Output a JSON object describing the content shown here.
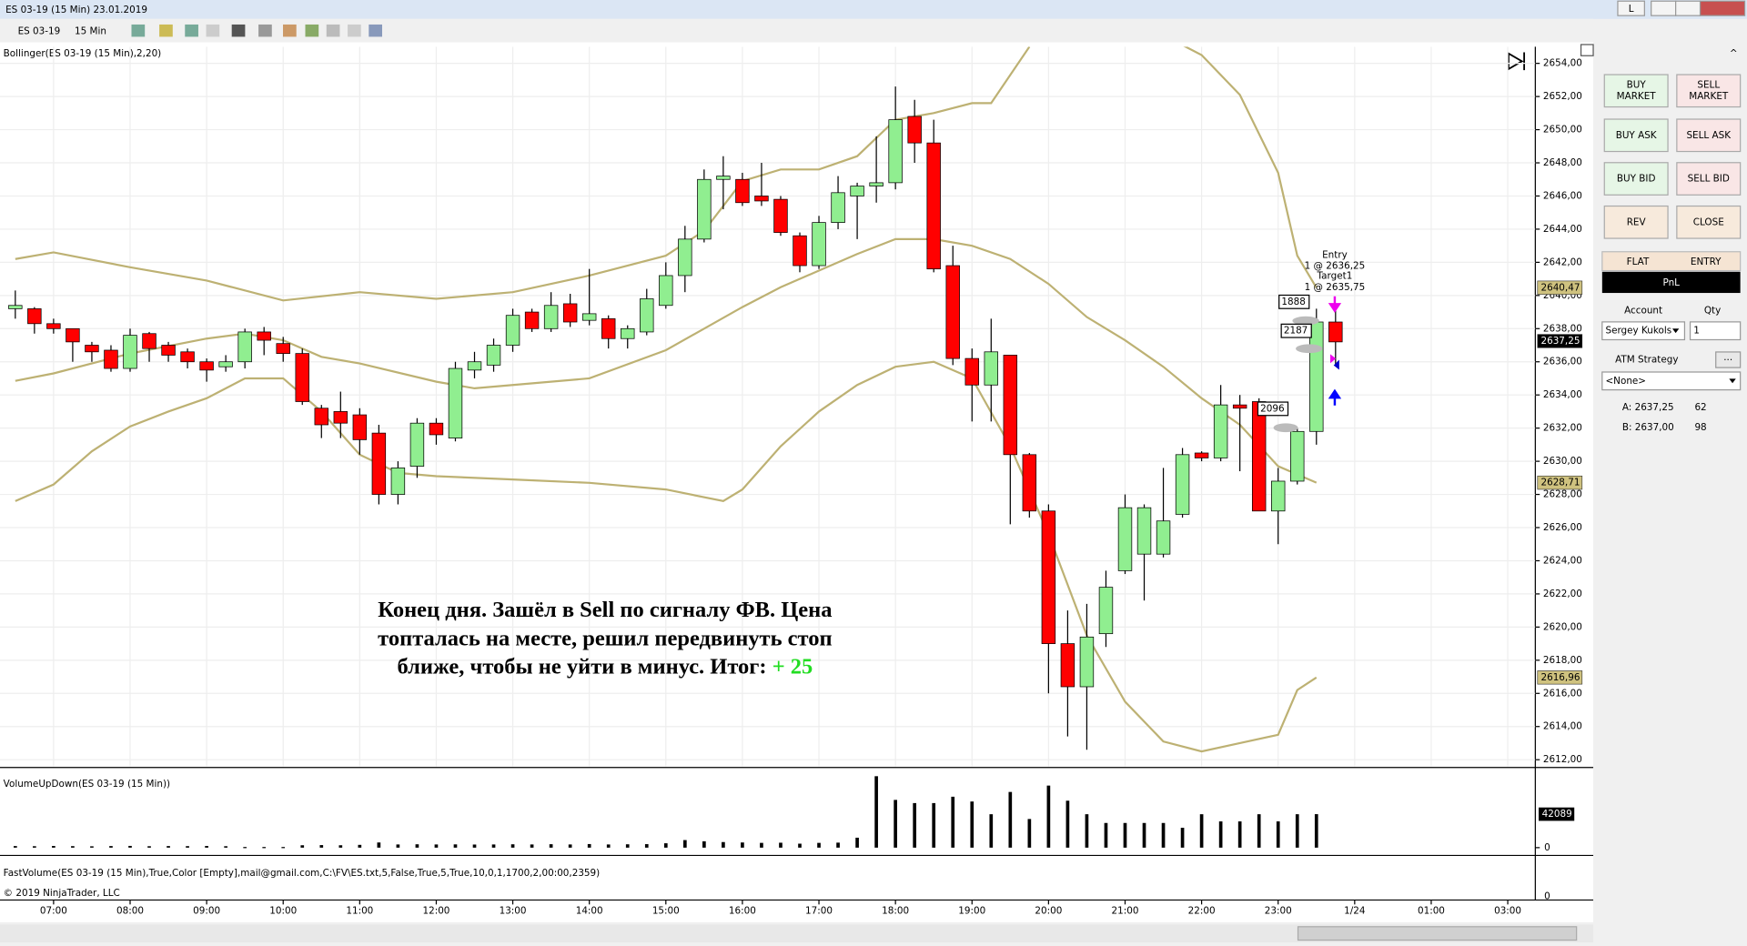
{
  "window": {
    "title": "ES 03-19 (15 Min)  23.01.2019",
    "button": "L"
  },
  "toolbar": {
    "instrument": "ES 03-19",
    "interval": "15 Min"
  },
  "chart_data": [
    {
      "type": "candlestick",
      "title": "Bollinger(ES 03-19 (15 Min),2,20)",
      "x": [
        6.5,
        6.75,
        7,
        7.25,
        7.5,
        7.75,
        8,
        8.25,
        8.5,
        8.75,
        9,
        9.25,
        9.5,
        9.75,
        10,
        10.25,
        10.5,
        10.75,
        11,
        11.25,
        11.5,
        11.75,
        12,
        12.25,
        12.5,
        12.75,
        13,
        13.25,
        13.5,
        13.75,
        14,
        14.25,
        14.5,
        14.75,
        15,
        15.25,
        15.5,
        15.75,
        16,
        16.25,
        16.5,
        16.75,
        17,
        17.25,
        17.5,
        17.75,
        18,
        18.25,
        18.5,
        18.75,
        19,
        19.25,
        19.5,
        19.75,
        20,
        20.25,
        20.5,
        20.75,
        21,
        21.25,
        21.5,
        21.75,
        22,
        22.25,
        22.5,
        22.75,
        23,
        23.25,
        23.5,
        23.75
      ],
      "open": [
        2639.2,
        2639.2,
        2638.3,
        2638.0,
        2637.0,
        2636.7,
        2635.6,
        2637.7,
        2637.0,
        2636.6,
        2636.0,
        2635.7,
        2636.0,
        2637.8,
        2637.1,
        2636.5,
        2633.2,
        2633.0,
        2632.8,
        2631.7,
        2628.0,
        2629.7,
        2632.3,
        2631.4,
        2635.5,
        2635.8,
        2637.0,
        2639.0,
        2638.0,
        2639.5,
        2638.5,
        2638.6,
        2637.4,
        2637.8,
        2639.4,
        2641.2,
        2643.4,
        2647.0,
        2647.0,
        2646.0,
        2645.8,
        2643.6,
        2641.8,
        2644.4,
        2646.0,
        2646.6,
        2646.8,
        2650.8,
        2649.2,
        2641.8,
        2636.2,
        2634.6,
        2636.4,
        2630.4,
        2627.0,
        2619.0,
        2616.4,
        2619.6,
        2623.4,
        2624.4,
        2624.4,
        2626.8,
        2630.5,
        2630.2,
        2633.4,
        2633.6,
        2627.0,
        2628.8,
        2631.8,
        2638.4
      ],
      "high": [
        2640.3,
        2639.3,
        2638.6,
        2638.0,
        2637.2,
        2637.0,
        2638.0,
        2637.8,
        2637.2,
        2636.8,
        2636.2,
        2636.4,
        2638.0,
        2638.1,
        2637.5,
        2636.8,
        2633.4,
        2634.2,
        2633.2,
        2632.2,
        2630.0,
        2632.6,
        2632.6,
        2636.0,
        2636.6,
        2637.4,
        2639.2,
        2639.2,
        2640.2,
        2640.1,
        2641.6,
        2638.8,
        2638.2,
        2640.4,
        2642.0,
        2644.2,
        2647.6,
        2648.4,
        2647.4,
        2648.0,
        2646.0,
        2643.8,
        2644.8,
        2647.2,
        2646.8,
        2649.6,
        2652.6,
        2651.8,
        2650.6,
        2643.0,
        2636.8,
        2638.6,
        2636.4,
        2630.5,
        2627.4,
        2621.0,
        2621.4,
        2623.4,
        2628.0,
        2627.4,
        2629.6,
        2630.8,
        2630.6,
        2634.6,
        2634.0,
        2633.8,
        2629.6,
        2632.0,
        2639.2,
        2639.2
      ],
      "low": [
        2638.6,
        2637.7,
        2637.7,
        2636.0,
        2636.0,
        2635.4,
        2635.4,
        2636.0,
        2636.0,
        2635.6,
        2634.8,
        2635.4,
        2635.6,
        2636.4,
        2636.0,
        2633.4,
        2631.4,
        2631.4,
        2630.4,
        2627.4,
        2627.4,
        2629.0,
        2631.0,
        2631.2,
        2635.0,
        2635.4,
        2636.6,
        2637.8,
        2637.8,
        2638.1,
        2638.2,
        2636.8,
        2636.8,
        2637.6,
        2639.2,
        2640.2,
        2643.2,
        2645.2,
        2645.4,
        2645.4,
        2643.6,
        2641.4,
        2641.6,
        2644.0,
        2643.4,
        2645.6,
        2646.4,
        2648.0,
        2641.4,
        2635.8,
        2632.4,
        2632.4,
        2626.2,
        2626.6,
        2616.0,
        2613.4,
        2612.6,
        2618.8,
        2623.2,
        2621.6,
        2624.2,
        2626.6,
        2630.0,
        2630.0,
        2629.4,
        2627.0,
        2625.0,
        2628.6,
        2631.0,
        2635.8
      ],
      "close": [
        2639.4,
        2638.3,
        2638.0,
        2637.2,
        2636.6,
        2635.6,
        2637.6,
        2636.8,
        2636.4,
        2636.0,
        2635.5,
        2636.0,
        2637.8,
        2637.3,
        2636.5,
        2633.6,
        2632.2,
        2632.3,
        2631.3,
        2628.0,
        2629.6,
        2632.3,
        2631.6,
        2635.6,
        2636.0,
        2637.0,
        2638.8,
        2638.0,
        2639.4,
        2638.4,
        2638.9,
        2637.4,
        2638.0,
        2639.8,
        2641.2,
        2643.4,
        2647.0,
        2647.2,
        2645.6,
        2645.7,
        2643.8,
        2641.8,
        2644.4,
        2646.2,
        2646.6,
        2646.8,
        2650.6,
        2649.2,
        2641.6,
        2636.2,
        2634.6,
        2636.6,
        2630.4,
        2627.0,
        2619.0,
        2616.4,
        2619.4,
        2622.4,
        2627.2,
        2627.2,
        2626.4,
        2630.4,
        2630.2,
        2633.4,
        2633.2,
        2627.0,
        2628.8,
        2631.8,
        2638.4,
        2637.2
      ],
      "up_color": "#90ee90",
      "down_color": "#ff0000",
      "bands": [
        {
          "color": "#bdb173",
          "x": [
            6.5,
            7,
            8,
            9,
            10,
            11,
            12,
            13,
            14,
            15,
            15.5,
            16,
            16.5,
            17,
            17.5,
            18,
            18.5,
            19,
            19.25,
            19.75,
            20.5,
            21.75,
            22,
            22.5,
            23,
            23.25,
            23.5
          ],
          "values": [
            2642.2,
            2642.6,
            2641.7,
            2640.9,
            2639.7,
            2640.2,
            2639.8,
            2640.2,
            2641.2,
            2642.4,
            2643.9,
            2646.9,
            2647.6,
            2647.6,
            2648.4,
            2650.6,
            2651.0,
            2651.6,
            2651.6,
            2655.0,
            null,
            2655.1,
            2654.5,
            2652.1,
            2647.4,
            2642.4,
            2640.47
          ]
        },
        {
          "color": "#bdb173",
          "x": [
            6.5,
            7,
            8,
            9,
            9.5,
            10,
            10.5,
            11,
            12,
            12.5,
            13,
            14,
            15,
            15.5,
            16,
            16.5,
            17,
            17.5,
            18,
            18.5,
            19,
            19.5,
            20,
            20.5,
            21,
            21.5,
            22,
            22.5,
            23,
            23.5
          ],
          "values": [
            2634.85,
            2635.3,
            2636.5,
            2637.4,
            2637.7,
            2637.3,
            2636.3,
            2635.9,
            2634.8,
            2634.4,
            2634.6,
            2635.0,
            2636.7,
            2638.0,
            2639.3,
            2640.5,
            2641.5,
            2642.5,
            2643.4,
            2643.4,
            2643.0,
            2642.2,
            2640.7,
            2638.7,
            2637.3,
            2635.7,
            2633.8,
            2632.2,
            2629.7,
            2628.71
          ]
        },
        {
          "color": "#bdb173",
          "x": [
            6.5,
            7,
            7.5,
            8,
            8.5,
            9,
            9.5,
            10,
            10.5,
            11,
            11.5,
            12,
            13,
            14,
            15,
            15.75,
            16,
            16.5,
            17,
            17.5,
            18,
            18.5,
            19,
            19.5,
            20,
            20.5,
            21,
            21.5,
            22,
            22.5,
            23,
            23.25,
            23.5
          ],
          "values": [
            2627.6,
            2628.6,
            2630.6,
            2632.1,
            2633.0,
            2633.8,
            2635.0,
            2635.0,
            2633.0,
            2630.4,
            2629.3,
            2629.1,
            2628.9,
            2628.7,
            2628.3,
            2627.6,
            2628.3,
            2630.9,
            2633.0,
            2634.6,
            2635.7,
            2636.0,
            2635.0,
            2630.9,
            2625.6,
            2619.5,
            2615.5,
            2613.1,
            2612.5,
            2613.0,
            2613.5,
            2616.2,
            2616.96
          ]
        }
      ],
      "price_markers": [
        {
          "value": 2640.47,
          "label": "2640,47",
          "color": "#cfc27f"
        },
        {
          "value": 2637.25,
          "label": "2637,25",
          "color": "#000000"
        },
        {
          "value": 2628.71,
          "label": "2628,71",
          "color": "#cfc27f"
        },
        {
          "value": 2616.96,
          "label": "2616,96",
          "color": "#cfc27f"
        }
      ],
      "xlim": [
        6.3,
        26.36
      ],
      "xticks": [
        {
          "value": 7,
          "label": "07:00"
        },
        {
          "value": 8,
          "label": "08:00"
        },
        {
          "value": 9,
          "label": "09:00"
        },
        {
          "value": 10,
          "label": "10:00"
        },
        {
          "value": 11,
          "label": "11:00"
        },
        {
          "value": 12,
          "label": "12:00"
        },
        {
          "value": 13,
          "label": "13:00"
        },
        {
          "value": 14,
          "label": "14:00"
        },
        {
          "value": 15,
          "label": "15:00"
        },
        {
          "value": 16,
          "label": "16:00"
        },
        {
          "value": 17,
          "label": "17:00"
        },
        {
          "value": 18,
          "label": "18:00"
        },
        {
          "value": 19,
          "label": "19:00"
        },
        {
          "value": 20,
          "label": "20:00"
        },
        {
          "value": 21,
          "label": "21:00"
        },
        {
          "value": 22,
          "label": "22:00"
        },
        {
          "value": 23,
          "label": "23:00"
        },
        {
          "value": 24,
          "label": "1/24"
        },
        {
          "value": 25,
          "label": "01:00"
        },
        {
          "value": 26,
          "label": "03:00"
        }
      ],
      "ylim": [
        2611.6,
        2655.0
      ],
      "yticks": [
        {
          "value": 2612,
          "label": "2612,00"
        },
        {
          "value": 2614,
          "label": "2614,00"
        },
        {
          "value": 2616,
          "label": "2616,00"
        },
        {
          "value": 2618,
          "label": "2618,00"
        },
        {
          "value": 2620,
          "label": "2620,00"
        },
        {
          "value": 2622,
          "label": "2622,00"
        },
        {
          "value": 2624,
          "label": "2624,00"
        },
        {
          "value": 2626,
          "label": "2626,00"
        },
        {
          "value": 2628,
          "label": "2628,00"
        },
        {
          "value": 2630,
          "label": "2630,00"
        },
        {
          "value": 2632,
          "label": "2632,00"
        },
        {
          "value": 2634,
          "label": "2634,00"
        },
        {
          "value": 2636,
          "label": "2636,00"
        },
        {
          "value": 2638,
          "label": "2638,00"
        },
        {
          "value": 2640,
          "label": "2640,00"
        },
        {
          "value": 2642,
          "label": "2642,00"
        },
        {
          "value": 2644,
          "label": "2644,00"
        },
        {
          "value": 2646,
          "label": "2646,00"
        },
        {
          "value": 2648,
          "label": "2648,00"
        },
        {
          "value": 2650,
          "label": "2650,00"
        },
        {
          "value": 2652,
          "label": "2652,00"
        },
        {
          "value": 2654,
          "label": "2654,00"
        }
      ],
      "grid": true,
      "annotation": {
        "lines": [
          "Конец дня. Зашёл в Sell по сигналу ФВ. Цена",
          "топталась на месте, решил передвинуть стоп",
          "ближе, чтобы не уйти в минус. Итог:"
        ],
        "result": "+ 25",
        "result_color": "#22dd22"
      },
      "orders": {
        "entry_label": "Entry",
        "entry": "1 @ 2636,25",
        "target_label": "Target1",
        "target": "1 @ 2635,75",
        "sizes": [
          1888,
          2187,
          2096
        ]
      }
    },
    {
      "type": "bar",
      "title": "VolumeUpDown(ES 03-19 (15 Min))",
      "x": [
        6.5,
        6.75,
        7,
        7.25,
        7.5,
        7.75,
        8,
        8.25,
        8.5,
        8.75,
        9,
        9.25,
        9.5,
        9.75,
        10,
        10.25,
        10.5,
        10.75,
        11,
        11.25,
        11.5,
        11.75,
        12,
        12.25,
        12.5,
        12.75,
        13,
        13.25,
        13.5,
        13.75,
        14,
        14.25,
        14.5,
        14.75,
        15,
        15.25,
        15.5,
        15.75,
        16,
        16.25,
        16.5,
        16.75,
        17,
        17.25,
        17.5,
        17.75,
        18,
        18.25,
        18.5,
        18.75,
        19,
        19.25,
        19.5,
        19.75,
        20,
        20.25,
        20.5,
        20.75,
        21,
        21.25,
        21.5,
        21.75,
        22,
        22.25,
        22.5,
        22.75,
        23,
        23.25,
        23.5,
        23.75
      ],
      "values": [
        2000,
        1800,
        2100,
        1900,
        1700,
        2000,
        2200,
        1800,
        2000,
        1900,
        2100,
        1800,
        800,
        800,
        800,
        3000,
        3200,
        3000,
        3500,
        6500,
        4000,
        4200,
        4000,
        4100,
        3900,
        4000,
        4200,
        4000,
        4300,
        4000,
        4500,
        4000,
        4200,
        4400,
        5500,
        9500,
        8000,
        7000,
        6500,
        6000,
        6200,
        5000,
        6000,
        6300,
        12500,
        89800,
        60000,
        56000,
        56000,
        64000,
        58000,
        42000,
        70000,
        36000,
        78000,
        59000,
        42000,
        31000,
        31000,
        31000,
        31000,
        25000,
        42000,
        33000,
        33000,
        42000,
        33000,
        42000,
        42089,
        null
      ],
      "color": "#000000",
      "ylim": [
        0,
        98000
      ],
      "yticks": [
        0
      ],
      "last_value": 42089
    }
  ],
  "fast_volume": {
    "title": "FastVolume(ES 03-19 (15 Min),True,Color [Empty],mail@gmail.com,C:\\FV\\ES.txt,5,False,True,5,True,10,0,1,1700,2,00:00,2359)",
    "tick": 0
  },
  "copyright": "© 2019 NinjaTrader, LLC",
  "order_panel": {
    "buttons": [
      [
        "BUY",
        "MARKET"
      ],
      [
        "SELL",
        "MARKET"
      ],
      [
        "BUY ASK"
      ],
      [
        "SELL ASK"
      ],
      [
        "BUY BID"
      ],
      [
        "SELL BID"
      ],
      [
        "REV"
      ],
      [
        "CLOSE"
      ]
    ],
    "flat": "FLAT",
    "entry": "ENTRY",
    "pnl": "PnL",
    "account_label": "Account",
    "qty_label": "Qty",
    "account": "Sergey Kukols",
    "qty": "1",
    "atm_label": "ATM Strategy",
    "atm": "<None>",
    "ask": "A: 2637,25",
    "ask_size": 62,
    "bid": "B: 2637,00",
    "bid_size": 98
  }
}
